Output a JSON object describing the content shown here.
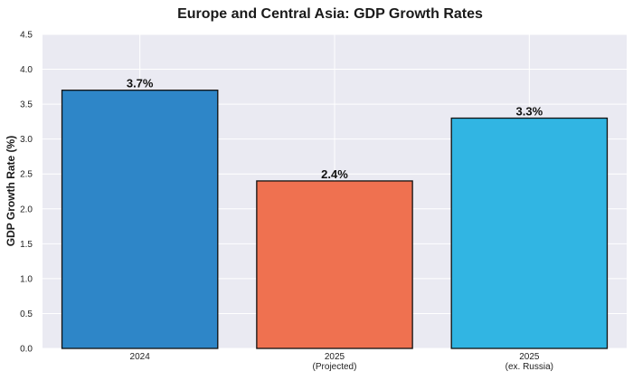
{
  "chart_data": {
    "type": "bar",
    "title": "Europe and Central Asia: GDP Growth Rates",
    "xlabel": "",
    "ylabel": "GDP Growth Rate (%)",
    "categories": [
      [
        "2024"
      ],
      [
        "2025",
        "(Projected)"
      ],
      [
        "2025",
        "(ex. Russia)"
      ]
    ],
    "values": [
      3.7,
      2.4,
      3.3
    ],
    "value_labels": [
      "3.7%",
      "2.4%",
      "3.3%"
    ],
    "ylim": [
      0,
      4.5
    ],
    "yticks": [
      0.0,
      0.5,
      1.0,
      1.5,
      2.0,
      2.5,
      3.0,
      3.5,
      4.0,
      4.5
    ],
    "ytick_labels": [
      "0.0",
      "0.5",
      "1.0",
      "1.5",
      "2.0",
      "2.5",
      "3.0",
      "3.5",
      "4.0",
      "4.5"
    ],
    "bar_colors": [
      "#2e86c8",
      "#ef7150",
      "#31b5e3"
    ],
    "bar_edge_color": "#111111",
    "background_color": "#eaeaf2",
    "grid": true,
    "grid_color": "#ffffff",
    "legend": "none"
  }
}
